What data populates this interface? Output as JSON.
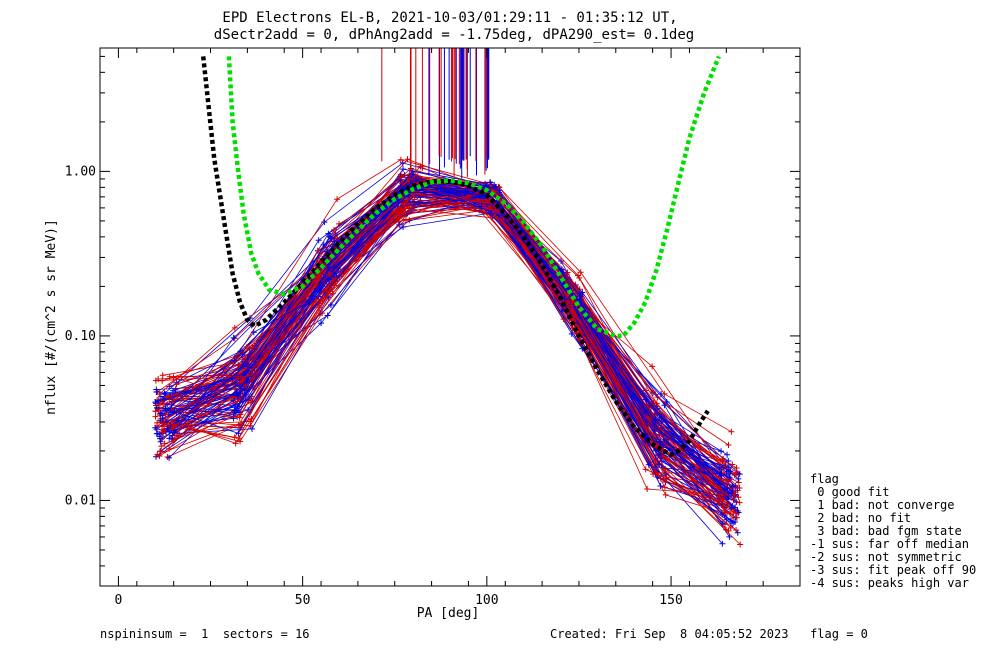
{
  "chart_data": {
    "type": "line",
    "title_line1": "EPD Electrons EL-B, 2021-10-03/01:29:11 - 01:35:12 UT,",
    "title_line2": "dSectr2add = 0, dPhAng2add = -1.75deg, dPA290_est=   0.1deg",
    "xlabel": "PA [deg]",
    "ylabel": "nflux [#/(cm^2 s sr MeV)]",
    "xlim": [
      -5,
      185
    ],
    "ylim_log10": [
      -2.52,
      0.75
    ],
    "log_y": true,
    "x_ticks": [
      0,
      50,
      100,
      150
    ],
    "x_tick_labels": [
      "0",
      "50",
      "100",
      "150"
    ],
    "y_ticks": [
      0.01,
      0.1,
      1.0
    ],
    "y_tick_labels": [
      "0.01",
      "0.10",
      "1.00"
    ],
    "colors": {
      "red": "#d40000",
      "blue": "#0000e0",
      "fit_black": "#000000",
      "fit_green": "#00e000"
    },
    "series": [
      {
        "name": "",
        "style": "fit-black-dotted",
        "x": [
          23,
          26,
          29,
          31,
          33,
          35,
          37,
          40,
          45,
          50,
          55,
          60,
          65,
          70,
          75,
          80,
          85,
          90,
          95,
          100,
          105,
          110,
          115,
          120,
          125,
          130,
          135,
          140,
          145,
          148,
          150,
          152,
          155,
          158,
          160
        ],
        "y": [
          5.0,
          1.2,
          0.45,
          0.24,
          0.16,
          0.125,
          0.115,
          0.125,
          0.16,
          0.21,
          0.28,
          0.37,
          0.48,
          0.6,
          0.72,
          0.82,
          0.87,
          0.87,
          0.82,
          0.72,
          0.55,
          0.4,
          0.27,
          0.17,
          0.1,
          0.062,
          0.04,
          0.028,
          0.022,
          0.02,
          0.019,
          0.02,
          0.023,
          0.03,
          0.035
        ]
      },
      {
        "name": "",
        "style": "fit-green-dotted",
        "x": [
          30,
          31,
          32.5,
          34,
          36,
          38,
          41,
          45,
          50,
          55,
          60,
          65,
          70,
          75,
          80,
          85,
          90,
          95,
          100,
          105,
          110,
          115,
          120,
          125,
          130,
          135,
          137,
          140,
          143,
          146,
          149,
          152,
          155,
          159,
          163
        ],
        "y": [
          5.0,
          2.0,
          1.0,
          0.55,
          0.32,
          0.24,
          0.19,
          0.18,
          0.2,
          0.26,
          0.34,
          0.44,
          0.56,
          0.68,
          0.78,
          0.86,
          0.88,
          0.85,
          0.77,
          0.64,
          0.49,
          0.35,
          0.23,
          0.15,
          0.11,
          0.1,
          0.1,
          0.12,
          0.16,
          0.25,
          0.45,
          0.85,
          1.6,
          3.0,
          5.0
        ]
      }
    ]
  },
  "legend": {
    "title": "flag",
    "items": [
      " 0 good fit",
      " 1 bad: not converge",
      " 2 bad: no fit",
      " 3 bad: bad fgm state",
      "-1 sus: far off median",
      "-2 sus: not symmetric",
      "-3 sus: fit peak off 90",
      "-4 sus: peaks high var"
    ]
  },
  "footer": {
    "left": "nspininsum =  1  sectors = 16",
    "right": "Created: Fri Sep  8 04:05:52 2023   flag = 0"
  }
}
